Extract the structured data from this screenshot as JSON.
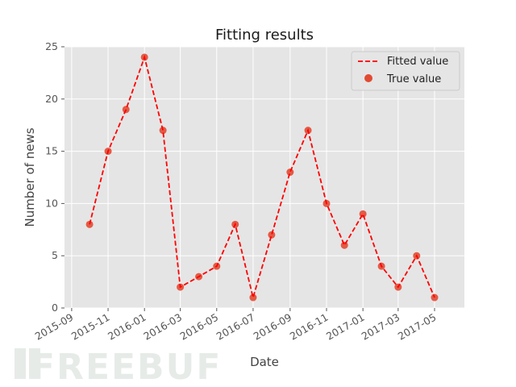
{
  "chart_data": {
    "type": "line",
    "title": "Fitting results",
    "xlabel": "Date",
    "ylabel": "Number of news",
    "ylim": [
      0,
      25
    ],
    "xlim": [
      "2015-08-20",
      "2017-06-20"
    ],
    "y_ticks": [
      0,
      5,
      10,
      15,
      20,
      25
    ],
    "x_ticks": [
      "2015-09",
      "2015-11",
      "2016-01",
      "2016-03",
      "2016-05",
      "2016-07",
      "2016-09",
      "2016-11",
      "2017-01",
      "2017-03",
      "2017-05"
    ],
    "grid": true,
    "legend": "top-right",
    "x": [
      "2015-10",
      "2015-11",
      "2015-12",
      "2016-01",
      "2016-02",
      "2016-03",
      "2016-04",
      "2016-05",
      "2016-06",
      "2016-07",
      "2016-08",
      "2016-09",
      "2016-10",
      "2016-11",
      "2016-12",
      "2017-01",
      "2017-02",
      "2017-03",
      "2017-04",
      "2017-05"
    ],
    "series": [
      {
        "name": "Fitted value",
        "style": "dashed-line",
        "color": "#ff0000",
        "values": [
          8,
          15,
          19,
          24,
          17,
          2,
          3,
          4,
          8,
          1,
          7,
          13,
          17,
          10,
          6,
          9,
          4,
          2,
          5,
          1
        ]
      },
      {
        "name": "True value",
        "style": "scatter",
        "color": "#e24a33",
        "values": [
          8,
          15,
          19,
          24,
          17,
          2,
          3,
          4,
          8,
          1,
          7,
          13,
          17,
          10,
          6,
          9,
          4,
          2,
          5,
          1
        ]
      }
    ]
  },
  "watermark": {
    "text": "FREEBUF"
  }
}
